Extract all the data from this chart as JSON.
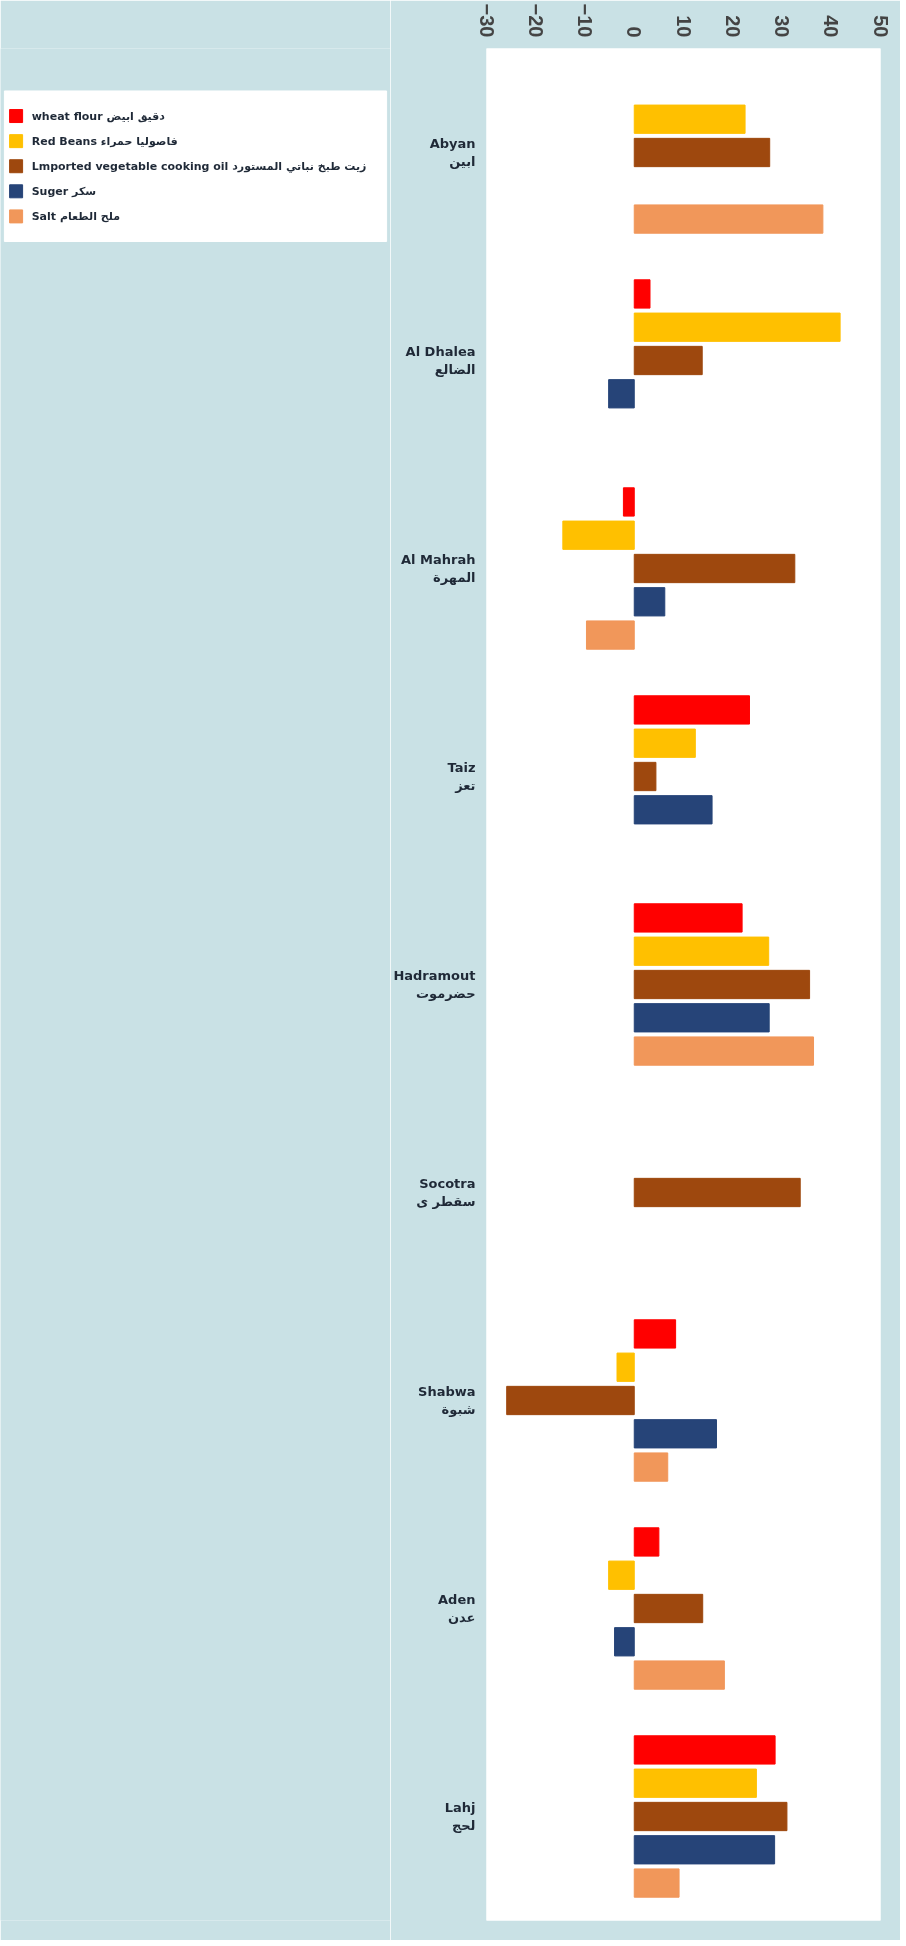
{
  "chart_data": {
    "type": "bar",
    "orientation": "horizontal",
    "categories": [
      "Abyan\nابين",
      "Al Dhalea\nالضالع",
      "Al Mahrah\nالمهرة",
      "Taiz\nتعز",
      "Hadramout\nحضرموت",
      "Socotra\nسقطر ى",
      "Shabwa\nشبوة",
      "Aden\nعدن",
      "Lahj\nلحج"
    ],
    "series": [
      {
        "name": "wheat flour  دقيق ابيض",
        "color": "#ff0000",
        "values": [
          null,
          3.2,
          -2.2,
          23.4,
          21.9,
          null,
          8.4,
          5.0,
          28.6
        ]
      },
      {
        "name": "Red Beans  فاصوليا حمراء",
        "color": "#ffc000",
        "values": [
          22.5,
          41.8,
          -14.5,
          12.4,
          27.3,
          null,
          -3.5,
          -5.2,
          24.8
        ]
      },
      {
        "name": "Lmported vegetable cooking oil  زيت طبخ نباتي المستورد",
        "color": "#9e480e",
        "values": [
          27.5,
          13.8,
          32.6,
          4.4,
          35.6,
          33.7,
          -25.9,
          13.9,
          31.0
        ]
      },
      {
        "name": "Suger  سكر",
        "color": "#264478",
        "values": [
          null,
          -5.2,
          6.2,
          15.8,
          27.4,
          null,
          16.7,
          -4.0,
          28.5
        ]
      },
      {
        "name": "Salt  ملح الطعام",
        "color": "#f1975a",
        "values": [
          38.3,
          null,
          -9.7,
          null,
          36.4,
          null,
          6.8,
          18.3,
          9.1
        ]
      }
    ],
    "xlim": [
      -30,
      50
    ],
    "xticks": [
      -30,
      -20,
      -10,
      0,
      10,
      20,
      30,
      40,
      50
    ],
    "grid": false,
    "legend": "left"
  }
}
